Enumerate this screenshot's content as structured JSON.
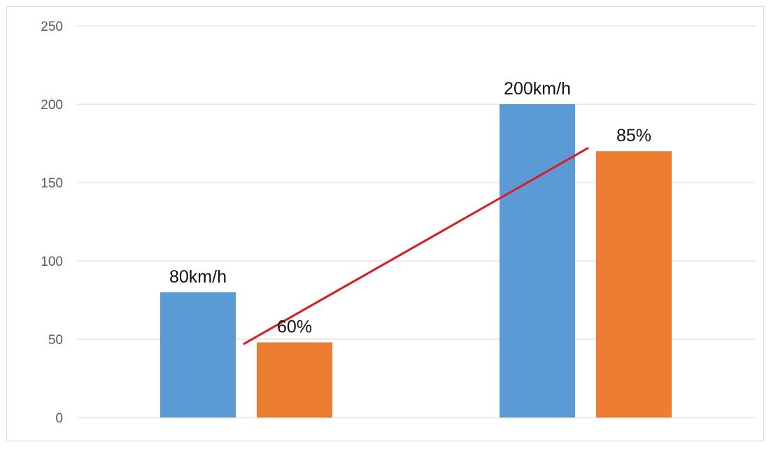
{
  "chart_data": {
    "type": "bar",
    "categories": [
      "",
      ""
    ],
    "series": [
      {
        "values": [
          80,
          200
        ],
        "labels": [
          "80km/h",
          "200km/h"
        ],
        "color": "#5b9bd5"
      },
      {
        "values": [
          48,
          170
        ],
        "labels": [
          "60%",
          "85%"
        ],
        "color": "#ed7d31"
      }
    ],
    "ylim": [
      0,
      250
    ],
    "yticks": [
      0,
      50,
      100,
      150,
      200,
      250
    ],
    "grid": true,
    "legend": "none",
    "trend_line": {
      "color": "#e0191e",
      "from": {
        "category": 0,
        "series": 1,
        "y": 48
      },
      "to": {
        "category": 1,
        "series": 1,
        "y": 171
      }
    }
  }
}
